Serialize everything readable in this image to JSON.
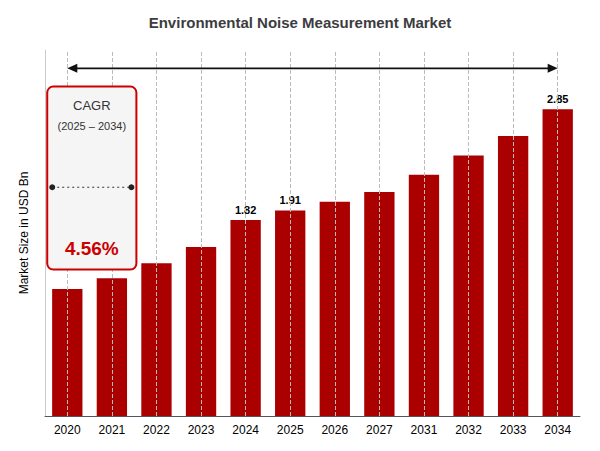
{
  "chart_data": {
    "type": "bar",
    "title": "Environmental Noise Measurement Market",
    "ylabel": "Market Size in USD Bn",
    "categories": [
      "2020",
      "2021",
      "2022",
      "2023",
      "2024",
      "2025",
      "2026",
      "2027",
      "2031",
      "2032",
      "2033",
      "2034"
    ],
    "values": [
      1.18,
      1.28,
      1.42,
      1.57,
      1.82,
      1.91,
      1.99,
      2.08,
      2.24,
      2.42,
      2.6,
      2.85
    ],
    "value_labels": [
      null,
      null,
      null,
      null,
      "1.82",
      "1.91",
      null,
      null,
      null,
      null,
      null,
      "2.85"
    ],
    "color": "#aa0000",
    "ylim": [
      0,
      3.4
    ],
    "grid": true,
    "tick_labels": "x",
    "annotations": [
      {
        "text": "CAGR"
      },
      {
        "text": "(2025 – 2034)"
      },
      {
        "text": "4.56%",
        "color": "#cc0000"
      }
    ]
  }
}
